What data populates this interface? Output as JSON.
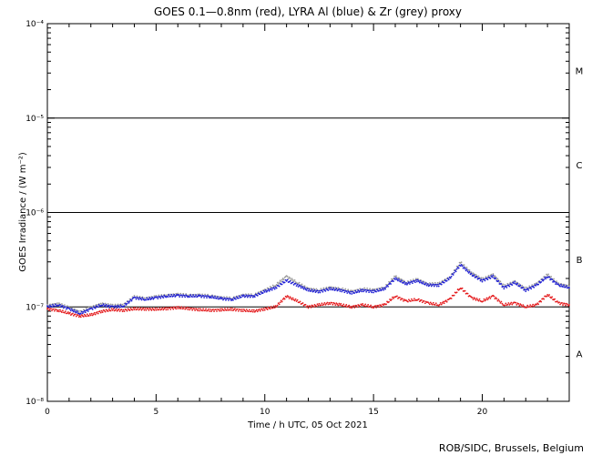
{
  "chart_data": {
    "type": "scatter",
    "title": "GOES 0.1—0.8nm (red), LYRA Al (blue) & Zr (grey) proxy",
    "xlabel": "Time / h UTC, 05 Oct 2021",
    "ylabel": "GOES Irradiance / (W m⁻²)",
    "xlim": [
      0,
      24
    ],
    "ylim": [
      1e-08,
      0.0001
    ],
    "yscale": "log",
    "x_ticks": [
      0,
      5,
      10,
      15,
      20
    ],
    "y_tick_labels": [
      {
        "value": 1e-08,
        "label": "10⁻⁸"
      },
      {
        "value": 1e-07,
        "label": "10⁻⁷"
      },
      {
        "value": 1e-06,
        "label": "10⁻⁶"
      },
      {
        "value": 1e-05,
        "label": "10⁻⁵"
      },
      {
        "value": 0.0001,
        "label": "10⁻⁴"
      }
    ],
    "flare_class_lines": [
      1e-07,
      1e-06,
      1e-05
    ],
    "flare_class_labels": [
      {
        "label": "A",
        "y": 3.2e-08
      },
      {
        "label": "B",
        "y": 3.2e-07
      },
      {
        "label": "C",
        "y": 3.2e-06
      },
      {
        "label": "M",
        "y": 3.2e-05
      }
    ],
    "series": [
      {
        "name": "GOES 0.1—0.8nm",
        "color": "#e41a1c",
        "x": [
          0,
          0.5,
          1,
          1.5,
          2,
          2.5,
          3,
          3.5,
          4,
          4.5,
          5,
          5.5,
          6,
          6.5,
          7,
          7.5,
          8,
          8.5,
          9,
          9.5,
          10,
          10.5,
          11,
          11.5,
          12,
          12.5,
          13,
          13.5,
          14,
          14.5,
          15,
          15.5,
          16,
          16.5,
          17,
          17.5,
          18,
          18.5,
          19,
          19.5,
          20,
          20.5,
          21,
          21.5,
          22,
          22.5,
          23,
          23.5,
          24
        ],
        "y": [
          9.5e-08,
          9.2e-08,
          8.5e-08,
          8e-08,
          8.2e-08,
          9e-08,
          9.3e-08,
          9.2e-08,
          9.5e-08,
          9.5e-08,
          9.4e-08,
          9.6e-08,
          9.8e-08,
          9.6e-08,
          9.3e-08,
          9.2e-08,
          9.3e-08,
          9.4e-08,
          9.2e-08,
          9e-08,
          9.5e-08,
          1e-07,
          1.3e-07,
          1.15e-07,
          1e-07,
          1.05e-07,
          1.1e-07,
          1.05e-07,
          1e-07,
          1.05e-07,
          1e-07,
          1.05e-07,
          1.3e-07,
          1.15e-07,
          1.2e-07,
          1.1e-07,
          1.05e-07,
          1.2e-07,
          1.6e-07,
          1.25e-07,
          1.15e-07,
          1.3e-07,
          1.05e-07,
          1.1e-07,
          1e-07,
          1.05e-07,
          1.35e-07,
          1.1e-07,
          1.05e-07
        ]
      },
      {
        "name": "LYRA Al",
        "color": "#1f1fd6",
        "x": [
          0,
          0.5,
          1,
          1.5,
          2,
          2.5,
          3,
          3.5,
          4,
          4.5,
          5,
          5.5,
          6,
          6.5,
          7,
          7.5,
          8,
          8.5,
          9,
          9.5,
          10,
          10.5,
          11,
          11.5,
          12,
          12.5,
          13,
          13.5,
          14,
          14.5,
          15,
          15.5,
          16,
          16.5,
          17,
          17.5,
          18,
          18.5,
          19,
          19.5,
          20,
          20.5,
          21,
          21.5,
          22,
          22.5,
          23,
          23.5,
          24
        ],
        "y": [
          1e-07,
          1.05e-07,
          9.5e-08,
          8.5e-08,
          9.5e-08,
          1.05e-07,
          1e-07,
          1.02e-07,
          1.25e-07,
          1.2e-07,
          1.25e-07,
          1.3e-07,
          1.32e-07,
          1.3e-07,
          1.3e-07,
          1.28e-07,
          1.22e-07,
          1.2e-07,
          1.3e-07,
          1.3e-07,
          1.45e-07,
          1.6e-07,
          1.9e-07,
          1.7e-07,
          1.5e-07,
          1.45e-07,
          1.55e-07,
          1.5e-07,
          1.4e-07,
          1.5e-07,
          1.45e-07,
          1.55e-07,
          2e-07,
          1.75e-07,
          1.9e-07,
          1.7e-07,
          1.7e-07,
          2e-07,
          2.8e-07,
          2.2e-07,
          1.9e-07,
          2.1e-07,
          1.6e-07,
          1.8e-07,
          1.5e-07,
          1.7e-07,
          2.1e-07,
          1.7e-07,
          1.6e-07
        ]
      },
      {
        "name": "Zr proxy",
        "color": "#9a9a9a",
        "x": [
          0,
          0.5,
          1,
          1.5,
          2,
          2.5,
          3,
          3.5,
          4,
          4.5,
          5,
          5.5,
          6,
          6.5,
          7,
          7.5,
          8,
          8.5,
          9,
          9.5,
          10,
          10.5,
          11,
          11.5,
          12,
          12.5,
          13,
          13.5,
          14,
          14.5,
          15,
          15.5,
          16,
          16.5,
          17,
          17.5,
          18,
          18.5,
          19,
          19.5,
          20,
          20.5,
          21,
          21.5,
          22,
          22.5,
          23,
          23.5,
          24
        ],
        "y": [
          1.03e-07,
          1.08e-07,
          9.8e-08,
          8.8e-08,
          9.8e-08,
          1.08e-07,
          1.03e-07,
          1.05e-07,
          1.28e-07,
          1.23e-07,
          1.28e-07,
          1.33e-07,
          1.35e-07,
          1.33e-07,
          1.33e-07,
          1.31e-07,
          1.25e-07,
          1.23e-07,
          1.33e-07,
          1.33e-07,
          1.5e-07,
          1.7e-07,
          2.1e-07,
          1.8e-07,
          1.55e-07,
          1.5e-07,
          1.6e-07,
          1.55e-07,
          1.45e-07,
          1.55e-07,
          1.5e-07,
          1.6e-07,
          2.1e-07,
          1.8e-07,
          1.95e-07,
          1.75e-07,
          1.75e-07,
          2.05e-07,
          2.95e-07,
          2.3e-07,
          1.95e-07,
          2.2e-07,
          1.65e-07,
          1.85e-07,
          1.55e-07,
          1.75e-07,
          2.2e-07,
          1.75e-07,
          1.65e-07
        ]
      }
    ]
  },
  "footer": {
    "credit": "ROB/SIDC, Brussels, Belgium"
  }
}
